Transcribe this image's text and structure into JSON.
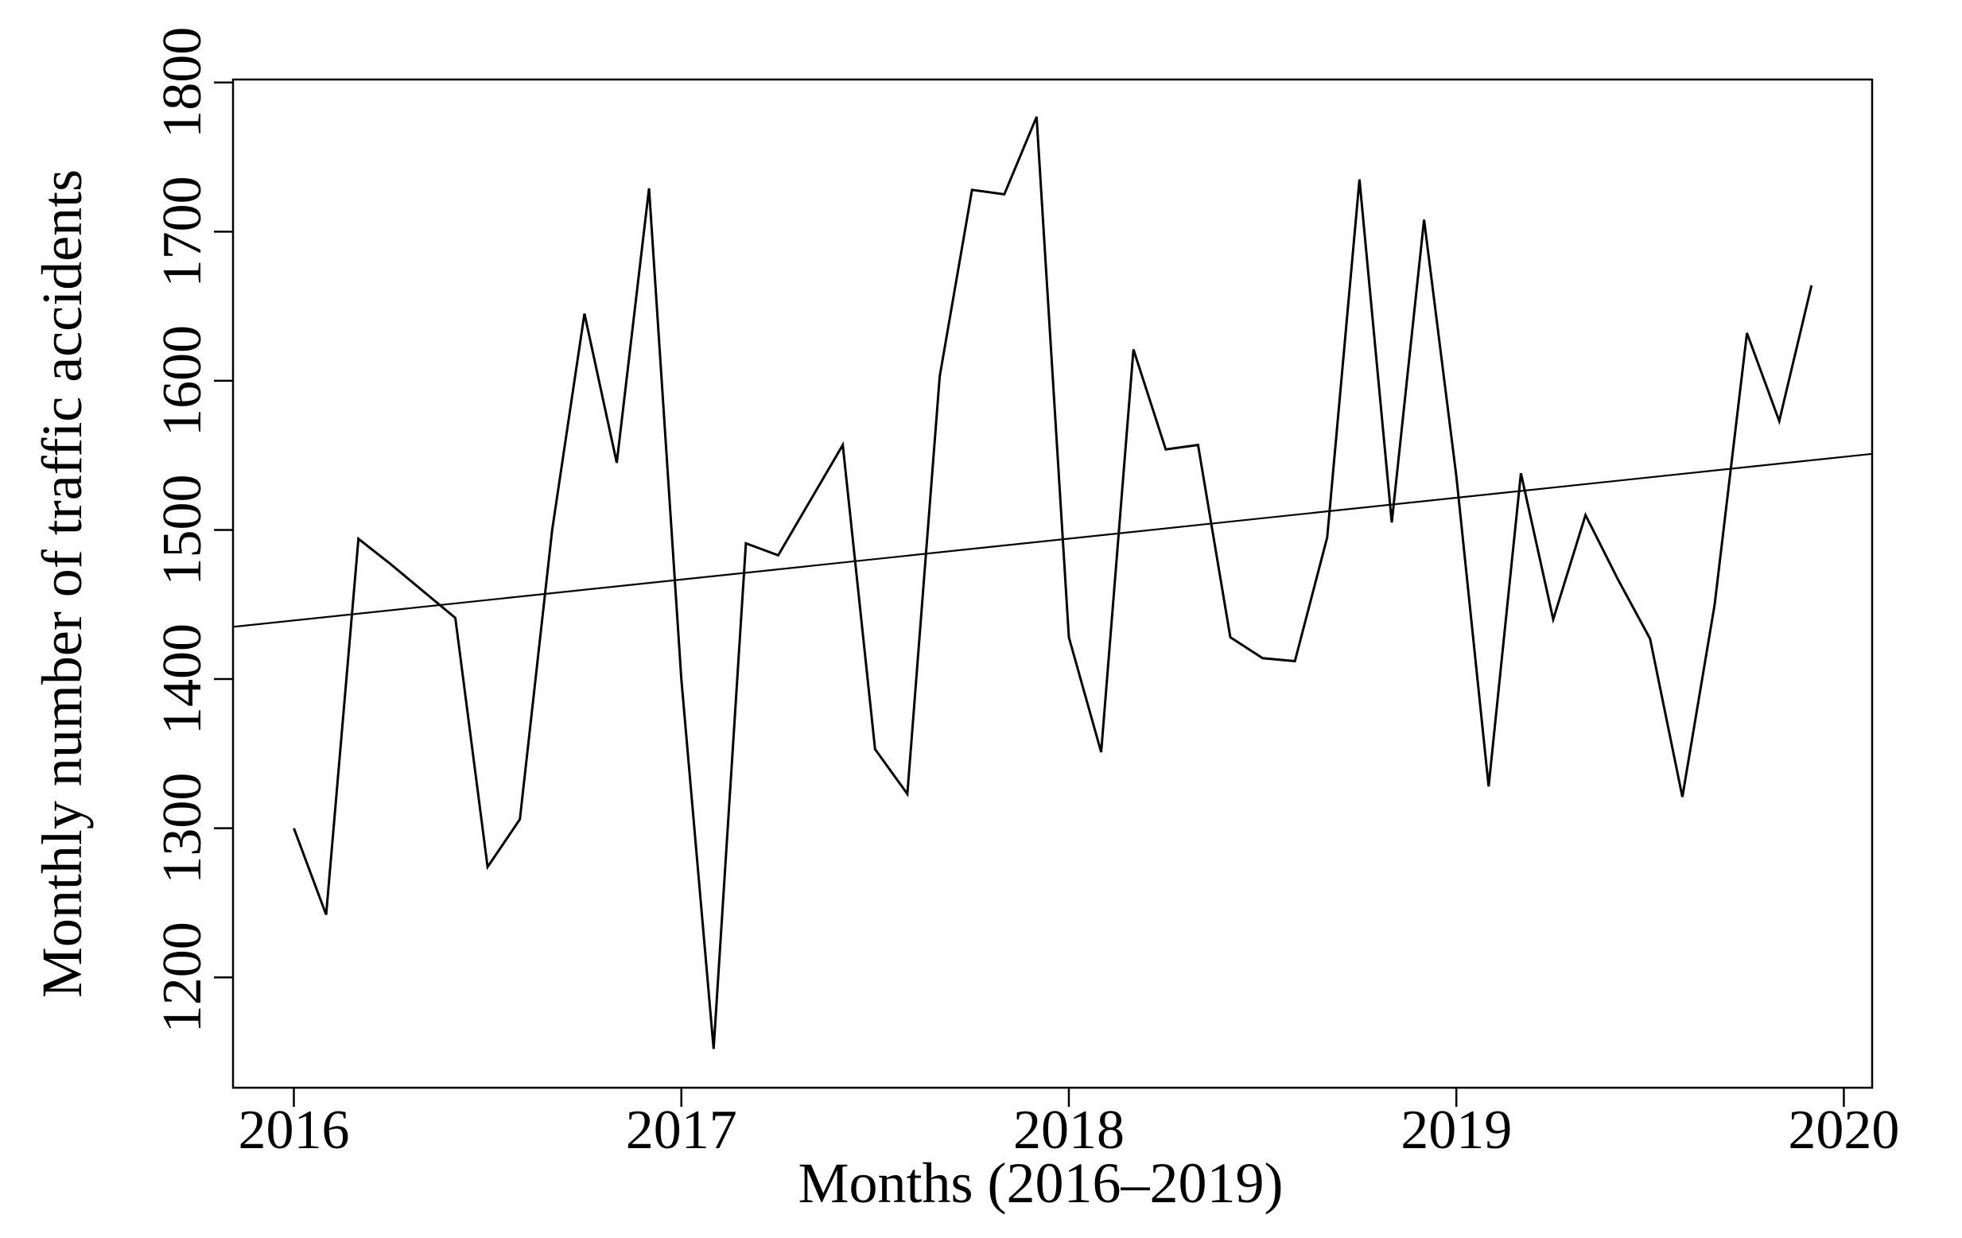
{
  "chart_data": {
    "type": "line",
    "title": "",
    "xlabel": "Months (2016–2019)",
    "ylabel": "Monthly number of traffic accidents",
    "x_tick_labels": [
      "2016",
      "2017",
      "2018",
      "2019",
      "2020"
    ],
    "x_tick_times": [
      2016,
      2017,
      2018,
      2019,
      2020
    ],
    "y_ticks": [
      1200,
      1300,
      1400,
      1500,
      1600,
      1700,
      1800
    ],
    "xlim": [
      2015.843,
      2020.073
    ],
    "ylim": [
      1126,
      1802
    ],
    "grid": false,
    "legend_position": "none",
    "line_color": "#000000",
    "trend_color": "#000000",
    "background_color": "#ffffff",
    "months": [
      "Jan 2016",
      "Feb 2016",
      "Mar 2016",
      "Apr 2016",
      "May 2016",
      "Jun 2016",
      "Jul 2016",
      "Aug 2016",
      "Sep 2016",
      "Oct 2016",
      "Nov 2016",
      "Dec 2016",
      "Jan 2017",
      "Feb 2017",
      "Mar 2017",
      "Apr 2017",
      "May 2017",
      "Jun 2017",
      "Jul 2017",
      "Aug 2017",
      "Sep 2017",
      "Oct 2017",
      "Nov 2017",
      "Dec 2017",
      "Jan 2018",
      "Feb 2018",
      "Mar 2018",
      "Apr 2018",
      "May 2018",
      "Jun 2018",
      "Jul 2018",
      "Aug 2018",
      "Sep 2018",
      "Oct 2018",
      "Nov 2018",
      "Dec 2018",
      "Jan 2019",
      "Feb 2019",
      "Mar 2019",
      "Apr 2019",
      "May 2019",
      "Jun 2019",
      "Jul 2019",
      "Aug 2019",
      "Sep 2019",
      "Oct 2019",
      "Nov 2019",
      "Dec 2019"
    ],
    "series": [
      {
        "name": "Monthly number of traffic accidents",
        "start_time": 2016.0,
        "step_years": 0.0833333,
        "values": [
          1300,
          1242,
          1494,
          1477,
          1459,
          1441,
          1274,
          1306,
          1500,
          1645,
          1545,
          1729,
          1400,
          1152,
          1491,
          1483,
          1520,
          1557,
          1353,
          1323,
          1603,
          1728,
          1725,
          1777,
          1428,
          1351,
          1621,
          1554,
          1557,
          1428,
          1414,
          1412,
          1495,
          1735,
          1505,
          1708,
          1536,
          1328,
          1538,
          1440,
          1510,
          1467,
          1427,
          1321,
          1450,
          1632,
          1573,
          1664
        ]
      }
    ],
    "trend": {
      "type": "linear",
      "x": [
        2015.843,
        2020.073
      ],
      "y": [
        1435,
        1551
      ],
      "slope_per_year": 27.4
    }
  }
}
